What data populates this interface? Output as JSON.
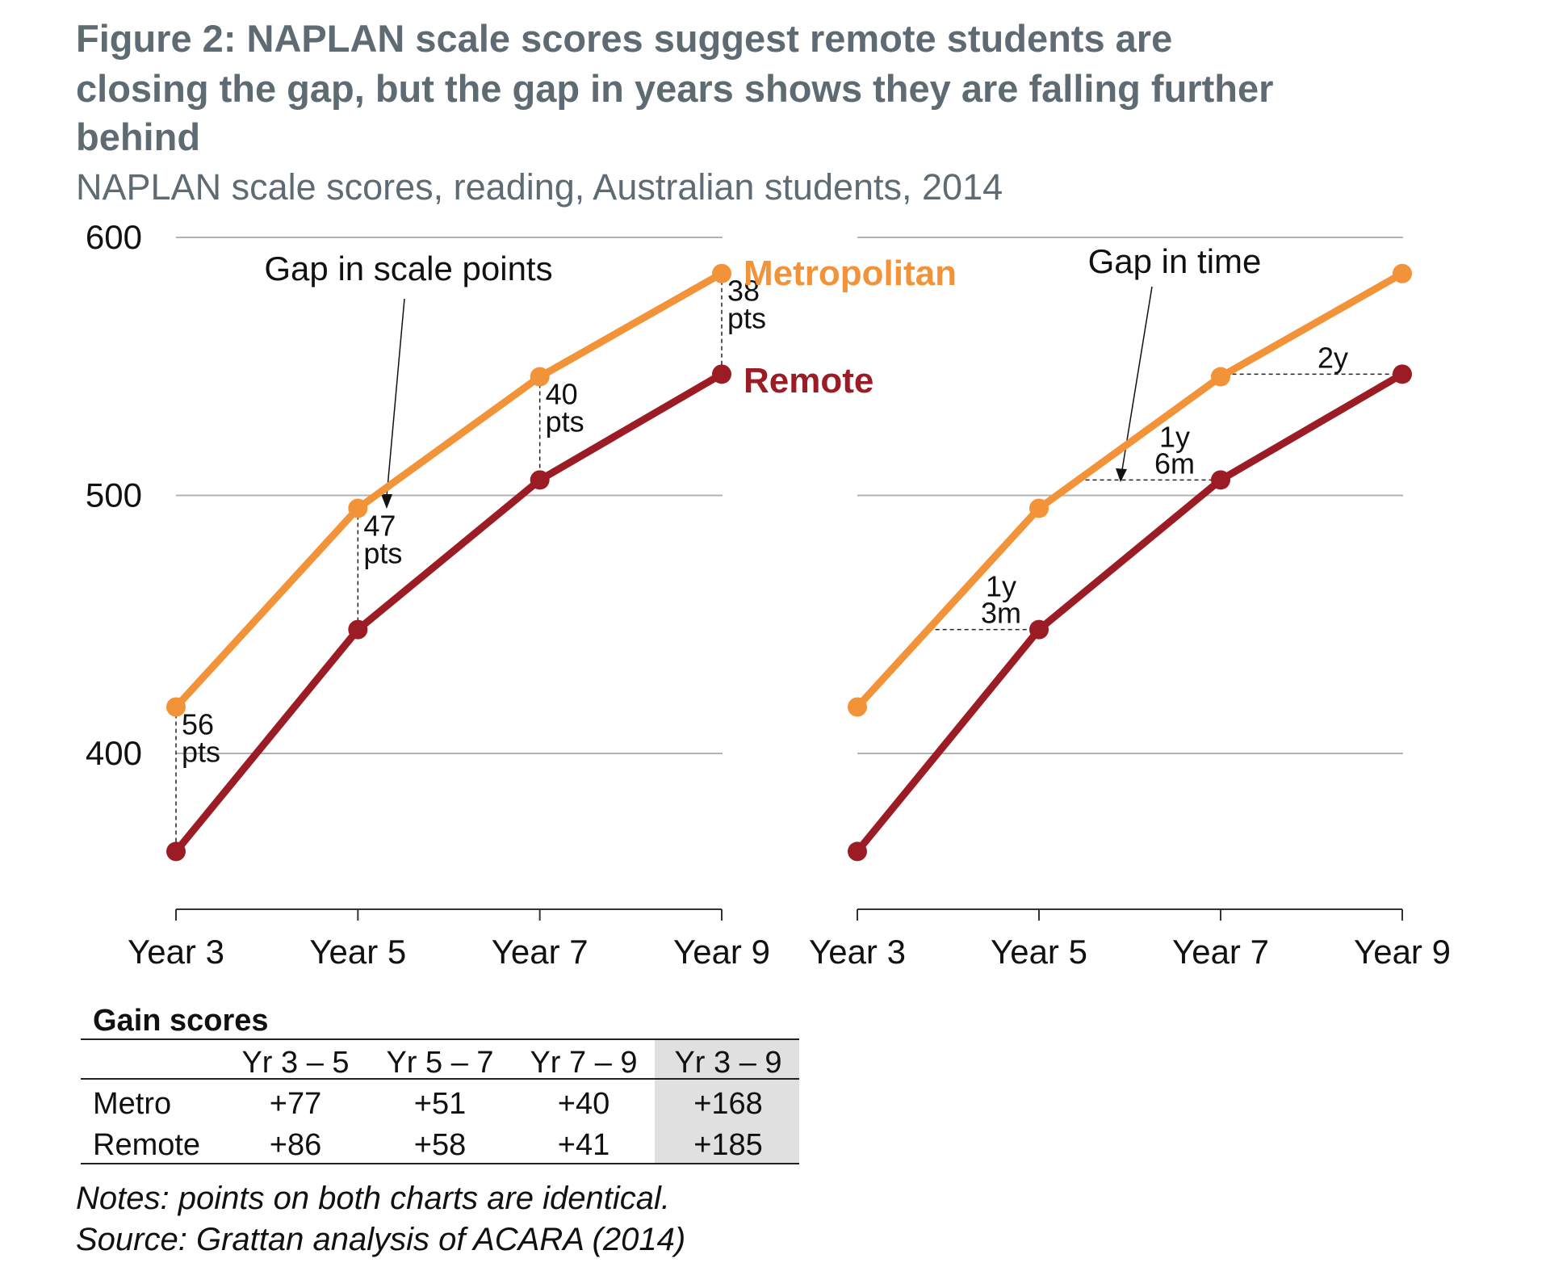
{
  "title_lines": [
    "Figure 2: NAPLAN scale scores suggest remote students are",
    "closing the gap, but the gap in years shows they are falling further",
    "behind"
  ],
  "subtitle": "NAPLAN scale scores, reading, Australian students, 2014",
  "colors": {
    "metro": "#f39339",
    "remote": "#9b1c24",
    "grid": "#b3b3b3",
    "table_highlight": "#e0e0e0"
  },
  "chart_data": [
    {
      "type": "line",
      "categories": [
        "Year 3",
        "Year 5",
        "Year 7",
        "Year 9"
      ],
      "series": [
        {
          "name": "Metropolitan",
          "values": [
            418,
            495,
            546,
            586
          ]
        },
        {
          "name": "Remote",
          "values": [
            362,
            448,
            506,
            547
          ]
        }
      ],
      "ylim": [
        350,
        600
      ],
      "yticks": [
        600,
        500,
        400
      ],
      "grid": true,
      "annotation_title": "Gap in scale points",
      "gap_labels": [
        [
          "56",
          "pts"
        ],
        [
          "47",
          "pts"
        ],
        [
          "40",
          "pts"
        ],
        [
          "38",
          "pts"
        ]
      ]
    },
    {
      "type": "line",
      "categories": [
        "Year 3",
        "Year 5",
        "Year 7",
        "Year 9"
      ],
      "series": [
        {
          "name": "Metropolitan",
          "values": [
            418,
            495,
            546,
            586
          ]
        },
        {
          "name": "Remote",
          "values": [
            362,
            448,
            506,
            547
          ]
        }
      ],
      "ylim": [
        350,
        600
      ],
      "grid": true,
      "annotation_title": "Gap in time",
      "gap_labels": [
        [
          "1y",
          "3m"
        ],
        [
          "1y",
          "6m"
        ],
        [
          "2y"
        ]
      ]
    }
  ],
  "legend": {
    "metro": "Metropolitan",
    "remote": "Remote"
  },
  "table": {
    "title": "Gain scores",
    "headers": [
      "Yr 3 – 5",
      "Yr 5 – 7",
      "Yr 7 – 9",
      "Yr 3 – 9"
    ],
    "rows": [
      {
        "label": "Metro",
        "values": [
          "+77",
          "+51",
          "+40",
          "+168"
        ]
      },
      {
        "label": "Remote",
        "values": [
          "+86",
          "+58",
          "+41",
          "+185"
        ]
      }
    ]
  },
  "notes": [
    "Notes: points on both charts are identical.",
    "Source: Grattan analysis of ACARA (2014)"
  ]
}
